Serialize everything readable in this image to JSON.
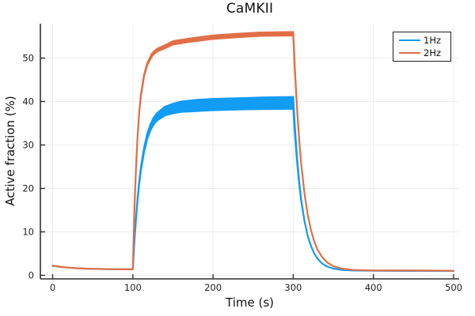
{
  "window": {
    "background": "#ffffff"
  },
  "styles": {
    "spine_color": "#2f2f2f",
    "grid_color": "#ececec",
    "tick_label_color": "#1c1c1c",
    "series1_color": "#129CF3",
    "series2_color": "#E26E46",
    "legend_border_color": "#1f1f1f",
    "legend_background": "#ffffff"
  },
  "chart_data": {
    "type": "line",
    "title": "CaMKII",
    "xlabel": "Time (s)",
    "ylabel": "Active fraction (%)",
    "xlim": [
      -15,
      507
    ],
    "ylim": [
      -0.9,
      57.9
    ],
    "xticks": [
      0,
      100,
      200,
      300,
      400,
      500
    ],
    "yticks": [
      0,
      10,
      20,
      30,
      40,
      50
    ],
    "grid": true,
    "legend": {
      "position": "top-right",
      "entries": [
        {
          "label": "1Hz",
          "color": "#129CF3"
        },
        {
          "label": "2Hz",
          "color": "#E26E46"
        }
      ]
    },
    "series": [
      {
        "name": "1Hz",
        "color": "#129CF3",
        "description": "band points [t, lo, hi]; oscillating 1Hz trace rendered as envelope band",
        "band": [
          [
            0,
            2.2,
            2.2
          ],
          [
            5,
            2.07,
            2.07
          ],
          [
            10,
            1.95,
            1.95
          ],
          [
            15,
            1.86,
            1.86
          ],
          [
            20,
            1.77,
            1.77
          ],
          [
            30,
            1.64,
            1.64
          ],
          [
            40,
            1.55,
            1.55
          ],
          [
            50,
            1.49,
            1.49
          ],
          [
            60,
            1.45,
            1.45
          ],
          [
            70,
            1.42,
            1.42
          ],
          [
            80,
            1.4,
            1.4
          ],
          [
            90,
            1.39,
            1.39
          ],
          [
            100,
            1.38,
            1.38
          ],
          [
            102,
            7.8,
            8.0
          ],
          [
            104,
            13.1,
            13.5
          ],
          [
            106,
            17.6,
            18.0
          ],
          [
            108,
            21.1,
            21.7
          ],
          [
            110,
            24.0,
            24.8
          ],
          [
            114,
            28.4,
            29.4
          ],
          [
            118,
            31.4,
            32.6
          ],
          [
            122,
            33.4,
            34.8
          ],
          [
            126,
            34.7,
            36.3
          ],
          [
            130,
            35.6,
            37.3
          ],
          [
            140,
            36.8,
            38.8
          ],
          [
            150,
            37.3,
            39.5
          ],
          [
            160,
            37.6,
            40.0
          ],
          [
            180,
            37.8,
            40.4
          ],
          [
            200,
            38.0,
            40.6
          ],
          [
            220,
            38.1,
            40.7
          ],
          [
            240,
            38.2,
            40.8
          ],
          [
            260,
            38.25,
            40.95
          ],
          [
            280,
            38.3,
            41.0
          ],
          [
            300,
            38.35,
            41.05
          ],
          [
            302,
            32.6,
            34.4
          ],
          [
            304,
            27.7,
            28.9
          ],
          [
            306,
            23.6,
            24.4
          ],
          [
            308,
            20.05,
            20.55
          ],
          [
            310,
            17.05,
            17.35
          ],
          [
            314,
            12.5,
            12.5
          ],
          [
            318,
            9.1,
            9.1
          ],
          [
            322,
            6.8,
            6.8
          ],
          [
            326,
            5.1,
            5.1
          ],
          [
            330,
            3.9,
            3.9
          ],
          [
            336,
            2.7,
            2.7
          ],
          [
            342,
            2.05,
            2.05
          ],
          [
            350,
            1.55,
            1.55
          ],
          [
            360,
            1.26,
            1.26
          ],
          [
            375,
            1.11,
            1.11
          ],
          [
            400,
            1.06,
            1.06
          ],
          [
            450,
            1.02,
            1.02
          ],
          [
            500,
            1.0,
            1.0
          ]
        ]
      },
      {
        "name": "2Hz",
        "color": "#E26E46",
        "description": "band points [t, lo, hi]; oscillating 2Hz trace rendered as envelope band",
        "band": [
          [
            0,
            2.2,
            2.2
          ],
          [
            5,
            2.07,
            2.07
          ],
          [
            10,
            1.95,
            1.95
          ],
          [
            15,
            1.86,
            1.86
          ],
          [
            20,
            1.77,
            1.77
          ],
          [
            30,
            1.64,
            1.64
          ],
          [
            40,
            1.55,
            1.55
          ],
          [
            50,
            1.49,
            1.49
          ],
          [
            60,
            1.45,
            1.45
          ],
          [
            70,
            1.42,
            1.42
          ],
          [
            80,
            1.4,
            1.4
          ],
          [
            90,
            1.39,
            1.39
          ],
          [
            100,
            1.38,
            1.38
          ],
          [
            102,
            15.2,
            15.3
          ],
          [
            104,
            25.1,
            25.3
          ],
          [
            106,
            32.3,
            32.5
          ],
          [
            108,
            37.5,
            37.7
          ],
          [
            110,
            41.2,
            41.6
          ],
          [
            114,
            45.8,
            46.2
          ],
          [
            118,
            48.4,
            48.8
          ],
          [
            124,
            50.5,
            51.1
          ],
          [
            130,
            51.5,
            52.1
          ],
          [
            140,
            52.25,
            52.95
          ],
          [
            150,
            53.1,
            53.9
          ],
          [
            170,
            53.7,
            54.5
          ],
          [
            200,
            54.4,
            55.2
          ],
          [
            230,
            54.8,
            55.6
          ],
          [
            260,
            55.1,
            55.9
          ],
          [
            300,
            55.2,
            56.0
          ],
          [
            302,
            47.2,
            47.8
          ],
          [
            304,
            40.5,
            40.9
          ],
          [
            306,
            34.7,
            34.9
          ],
          [
            308,
            29.8,
            29.8
          ],
          [
            310,
            25.6,
            25.6
          ],
          [
            314,
            18.9,
            18.9
          ],
          [
            318,
            14.0,
            14.0
          ],
          [
            322,
            10.5,
            10.5
          ],
          [
            326,
            7.9,
            7.9
          ],
          [
            330,
            6.0,
            6.0
          ],
          [
            336,
            4.2,
            4.2
          ],
          [
            342,
            3.0,
            3.0
          ],
          [
            350,
            2.1,
            2.1
          ],
          [
            360,
            1.55,
            1.55
          ],
          [
            375,
            1.24,
            1.24
          ],
          [
            400,
            1.12,
            1.12
          ],
          [
            450,
            1.1,
            1.1
          ],
          [
            500,
            1.05,
            1.05
          ]
        ]
      }
    ]
  }
}
